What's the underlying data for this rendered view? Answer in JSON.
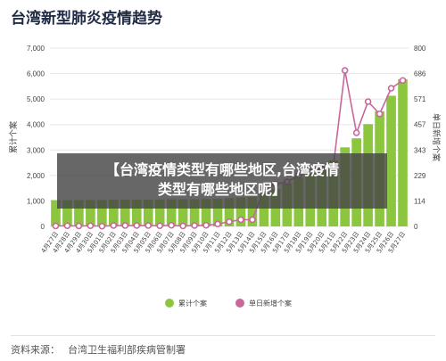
{
  "page_title": "台湾新型肺炎疫情趋势",
  "overlay_text_line1": "【台湾疫情类型有哪些地区,台湾疫情",
  "overlay_text_line2": "类型有哪些地区呢】",
  "source": {
    "label": "资料来源：",
    "value": "台湾卫生福利部疾病管制署"
  },
  "colors": {
    "bar": "#8cc63f",
    "line": "#c9669b",
    "marker_fill": "#ffffff",
    "grid": "#e6e6e6",
    "tick": "#444444"
  },
  "chart_data": {
    "type": "bar+line",
    "title": "台湾新型肺炎疫情趋势",
    "categories": [
      "4月27日",
      "4月28日",
      "4月29日",
      "4月30日",
      "5月01日",
      "5月02日",
      "5月03日",
      "5月04日",
      "5月05日",
      "5月06日",
      "5月07日",
      "5月08日",
      "5月09日",
      "5月10日",
      "5月11日",
      "5月12日",
      "5月13日",
      "5月14日",
      "5月15日",
      "5月16日",
      "5月17日",
      "5月18日",
      "5月19日",
      "5月20日",
      "5月21日",
      "5月22日",
      "5月23日",
      "5月24日",
      "5月25日",
      "5月26日",
      "5月27日"
    ],
    "y_left": {
      "label": "累计个案",
      "ticks": [
        "0",
        "1,000",
        "2,000",
        "3,000",
        "4,000",
        "5,000",
        "6,000",
        "7,000"
      ],
      "range": [
        0,
        7000
      ]
    },
    "y_right": {
      "label": "单日新增个案",
      "ticks": [
        "0",
        "114",
        "229",
        "343",
        "457",
        "571",
        "686",
        "800"
      ],
      "range": [
        0,
        800
      ]
    },
    "series": [
      {
        "name": "累计个案",
        "type": "bar",
        "axis": "left",
        "values": [
          1032,
          1034,
          1036,
          1039,
          1040,
          1044,
          1048,
          1052,
          1056,
          1059,
          1064,
          1066,
          1070,
          1075,
          1086,
          1107,
          1137,
          1167,
          1294,
          1484,
          1683,
          1913,
          2105,
          2326,
          2597,
          3104,
          3459,
          4016,
          4521,
          5130,
          5778
        ]
      },
      {
        "name": "单日新增个案",
        "type": "line",
        "axis": "right",
        "values": [
          2,
          3,
          2,
          3,
          1,
          4,
          4,
          4,
          4,
          3,
          5,
          2,
          4,
          5,
          11,
          21,
          30,
          30,
          165,
          190,
          200,
          230,
          245,
          260,
          271,
          700,
          420,
          560,
          505,
          620,
          655
        ]
      }
    ],
    "legend": {
      "position": "bottom",
      "entries": [
        "累计个案",
        "单日新增个案"
      ]
    },
    "grid": true
  }
}
